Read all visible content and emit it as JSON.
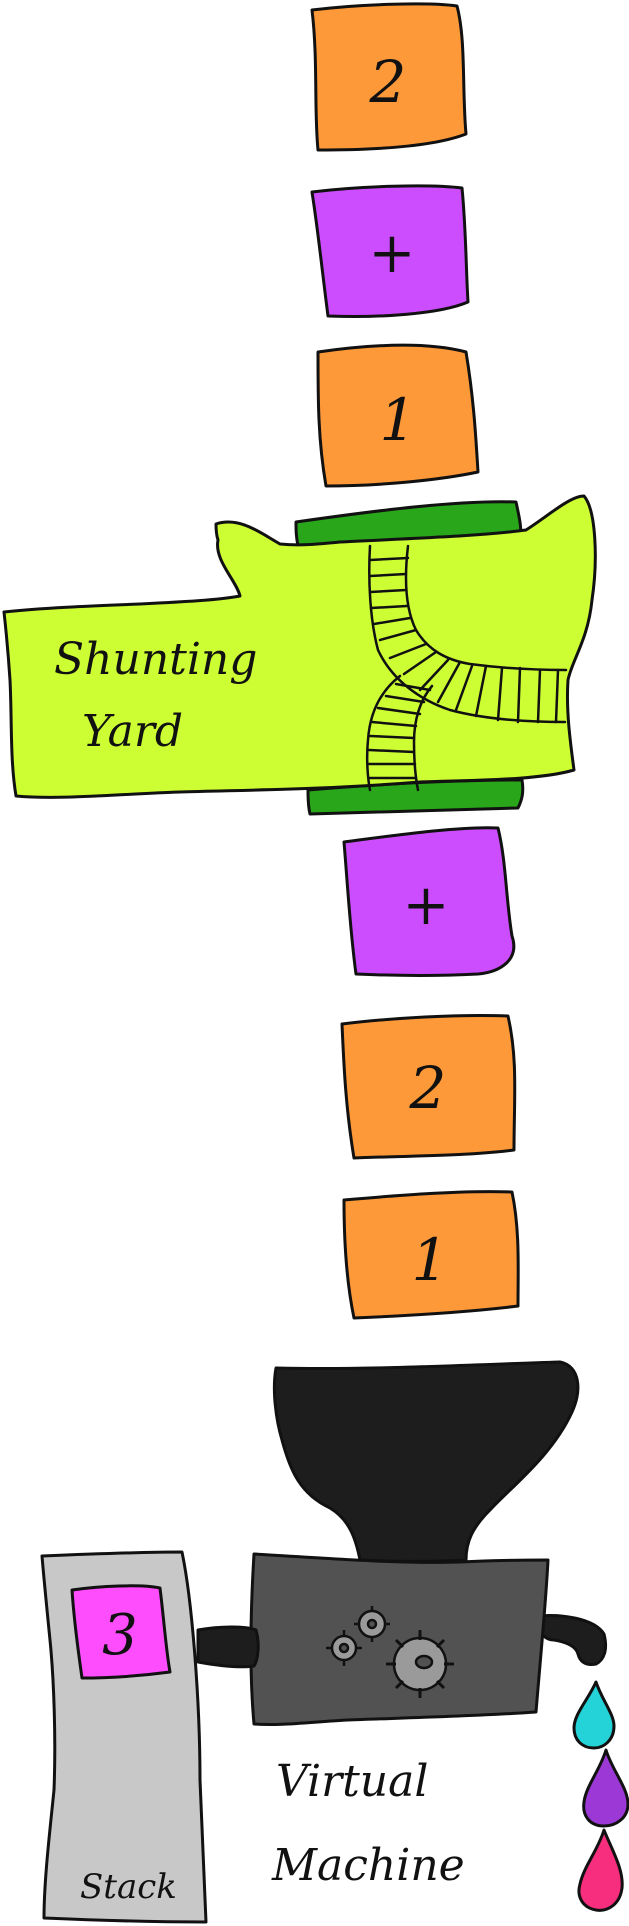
{
  "input_tokens": [
    "2",
    "+",
    "1"
  ],
  "shunting_yard": {
    "label_line1": "Shunting",
    "label_line2": "Yard"
  },
  "output_tokens": [
    "+",
    "2",
    "1"
  ],
  "stack": {
    "label": "Stack",
    "top_value": "3"
  },
  "virtual_machine": {
    "label_line1": "Virtual",
    "label_line2": "Machine"
  },
  "colors": {
    "number_block": "#fd9939",
    "operator_block": "#cc4dfd",
    "shunting_yard": "#cdfd33",
    "rails": "#2aa61a",
    "funnel": "#1d1d1d",
    "machine_body": "#525252",
    "stack_body": "#c8c8c8",
    "stack_value": "#fd4dfd",
    "drop_cyan": "#24d3d8",
    "drop_purple": "#9c39d6",
    "drop_pink": "#f72d7e"
  }
}
